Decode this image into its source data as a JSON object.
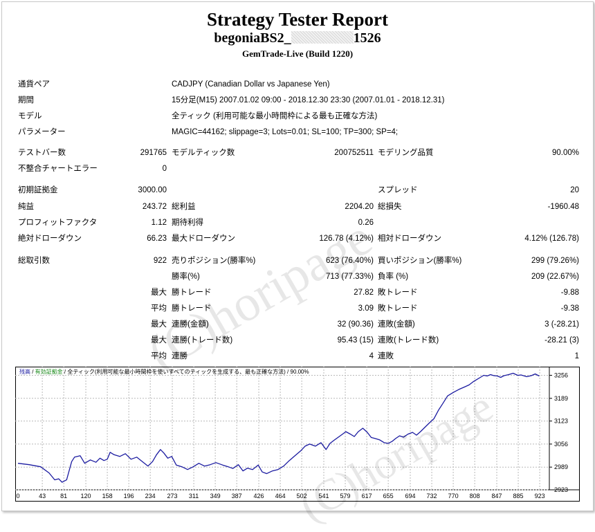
{
  "header": {
    "title": "Strategy Tester Report",
    "ea_prefix": "begoniaBS2_",
    "ea_suffix": "1526",
    "server": "GemTrade-Live (Build 1220)"
  },
  "settings": [
    {
      "label": "通貨ペア",
      "value": "CADJPY (Canadian Dollar vs Japanese Yen)"
    },
    {
      "label": "期間",
      "value": "15分足(M15) 2007.01.02 09:00 - 2018.12.30 23:30 (2007.01.01 - 2018.12.31)"
    },
    {
      "label": "モデル",
      "value": "全ティック (利用可能な最小時間枠による最も正確な方法)"
    },
    {
      "label": "パラメーター",
      "value": "MAGIC=44162; slippage=3; Lots=0.01; SL=100; TP=300; SP=4;"
    }
  ],
  "stats": {
    "bars_label": "テストバー数",
    "bars": "291765",
    "ticks_label": "モデルティック数",
    "ticks": "200752511",
    "quality_label": "モデリング品質",
    "quality": "90.00%",
    "errors_label": "不整合チャートエラー",
    "errors": "0",
    "deposit_label": "初期証拠金",
    "deposit": "3000.00",
    "spread_label": "スプレッド",
    "spread": "20",
    "net_label": "純益",
    "net": "243.72",
    "gross_profit_label": "総利益",
    "gross_profit": "2204.20",
    "gross_loss_label": "総損失",
    "gross_loss": "-1960.48",
    "pf_label": "プロフィットファクタ",
    "pf": "1.12",
    "expected_label": "期待利得",
    "expected": "0.26",
    "abs_dd_label": "絶対ドローダウン",
    "abs_dd": "66.23",
    "max_dd_label": "最大ドローダウン",
    "max_dd": "126.78 (4.12%)",
    "rel_dd_label": "相対ドローダウン",
    "rel_dd": "4.12% (126.78)",
    "trades_label": "総取引数",
    "trades": "922",
    "short_label": "売りポジション(勝率%)",
    "short": "623 (76.40%)",
    "long_label": "買いポジション(勝率%)",
    "long": "299 (79.26%)",
    "win_label": "勝率(%)",
    "win": "713 (77.33%)",
    "loss_label": "負率 (%)",
    "loss": "209 (22.67%)",
    "max_word": "最大",
    "avg_word": "平均",
    "profit_trade_label": "勝トレード",
    "largest_profit": "27.82",
    "avg_profit": "3.09",
    "loss_trade_label": "敗トレード",
    "largest_loss": "-9.88",
    "avg_loss": "-9.38",
    "cons_wins_money_label": "連勝(金額)",
    "cons_wins_money": "32 (90.36)",
    "cons_losses_money_label": "連敗(金額)",
    "cons_losses_money": "3 (-28.21)",
    "cons_profit_count_label": "連勝(トレード数)",
    "cons_profit_count": "95.43 (15)",
    "cons_loss_count_label": "連敗(トレード数)",
    "cons_loss_count": "-28.21 (3)",
    "wins_label": "連勝",
    "avg_cons_wins": "4",
    "losses_label": "連敗",
    "avg_cons_losses": "1"
  },
  "watermark": "(C)horipage",
  "chart_data": {
    "type": "line",
    "legend": {
      "balance": "残高",
      "sep": " / ",
      "equity": "有効証拠金",
      "desc": " / 全ティック(利用可能な最小時間枠を使いすべてのティックを生成する、最も正確な方法) / 90.00%"
    },
    "x_ticks": [
      "0",
      "43",
      "81",
      "120",
      "158",
      "196",
      "234",
      "273",
      "311",
      "349",
      "387",
      "426",
      "464",
      "502",
      "541",
      "579",
      "617",
      "655",
      "694",
      "732",
      "770",
      "808",
      "847",
      "885",
      "923"
    ],
    "y_ticks": [
      "3256",
      "3189",
      "3123",
      "3056",
      "2989",
      "2923"
    ],
    "xlim": [
      0,
      940
    ],
    "ylim": [
      2923,
      3265
    ],
    "colors": {
      "line": "#1a1aa0",
      "grid": "#b8b8b8"
    },
    "series": [
      {
        "values": [
          [
            0,
            3000
          ],
          [
            20,
            2996
          ],
          [
            40,
            2990
          ],
          [
            55,
            2972
          ],
          [
            65,
            2952
          ],
          [
            72,
            2955
          ],
          [
            78,
            2945
          ],
          [
            86,
            2952
          ],
          [
            95,
            3005
          ],
          [
            100,
            3018
          ],
          [
            110,
            3022
          ],
          [
            118,
            3000
          ],
          [
            128,
            3010
          ],
          [
            138,
            3003
          ],
          [
            145,
            3015
          ],
          [
            152,
            3008
          ],
          [
            158,
            3012
          ],
          [
            163,
            3032
          ],
          [
            170,
            3025
          ],
          [
            180,
            3020
          ],
          [
            190,
            3028
          ],
          [
            200,
            3012
          ],
          [
            210,
            3018
          ],
          [
            220,
            3005
          ],
          [
            230,
            2992
          ],
          [
            238,
            3005
          ],
          [
            245,
            3025
          ],
          [
            252,
            3040
          ],
          [
            258,
            3030
          ],
          [
            265,
            3015
          ],
          [
            272,
            3020
          ],
          [
            280,
            2995
          ],
          [
            290,
            2990
          ],
          [
            300,
            2982
          ],
          [
            310,
            2990
          ],
          [
            320,
            3000
          ],
          [
            330,
            2992
          ],
          [
            340,
            2996
          ],
          [
            350,
            3002
          ],
          [
            362,
            2995
          ],
          [
            372,
            2990
          ],
          [
            380,
            2985
          ],
          [
            390,
            2996
          ],
          [
            398,
            2978
          ],
          [
            406,
            2986
          ],
          [
            415,
            2982
          ],
          [
            425,
            2995
          ],
          [
            432,
            2975
          ],
          [
            440,
            2970
          ],
          [
            450,
            2978
          ],
          [
            460,
            2982
          ],
          [
            470,
            2992
          ],
          [
            480,
            3008
          ],
          [
            490,
            3022
          ],
          [
            500,
            3036
          ],
          [
            508,
            3050
          ],
          [
            516,
            3056
          ],
          [
            526,
            3050
          ],
          [
            536,
            3060
          ],
          [
            545,
            3040
          ],
          [
            552,
            3058
          ],
          [
            560,
            3068
          ],
          [
            570,
            3080
          ],
          [
            580,
            3092
          ],
          [
            588,
            3085
          ],
          [
            595,
            3078
          ],
          [
            602,
            3092
          ],
          [
            610,
            3102
          ],
          [
            618,
            3090
          ],
          [
            625,
            3075
          ],
          [
            632,
            3072
          ],
          [
            640,
            3068
          ],
          [
            648,
            3060
          ],
          [
            655,
            3058
          ],
          [
            662,
            3064
          ],
          [
            668,
            3072
          ],
          [
            675,
            3080
          ],
          [
            682,
            3076
          ],
          [
            690,
            3085
          ],
          [
            698,
            3090
          ],
          [
            705,
            3082
          ],
          [
            712,
            3092
          ],
          [
            720,
            3105
          ],
          [
            728,
            3118
          ],
          [
            736,
            3130
          ],
          [
            744,
            3155
          ],
          [
            752,
            3175
          ],
          [
            760,
            3196
          ],
          [
            770,
            3206
          ],
          [
            780,
            3215
          ],
          [
            790,
            3222
          ],
          [
            798,
            3228
          ],
          [
            806,
            3238
          ],
          [
            812,
            3244
          ],
          [
            818,
            3250
          ],
          [
            824,
            3256
          ],
          [
            830,
            3254
          ],
          [
            836,
            3258
          ],
          [
            842,
            3255
          ],
          [
            848,
            3254
          ],
          [
            854,
            3250
          ],
          [
            860,
            3255
          ],
          [
            868,
            3258
          ],
          [
            876,
            3262
          ],
          [
            884,
            3256
          ],
          [
            890,
            3257
          ],
          [
            900,
            3252
          ],
          [
            908,
            3255
          ],
          [
            915,
            3260
          ],
          [
            922,
            3254
          ]
        ]
      }
    ]
  }
}
